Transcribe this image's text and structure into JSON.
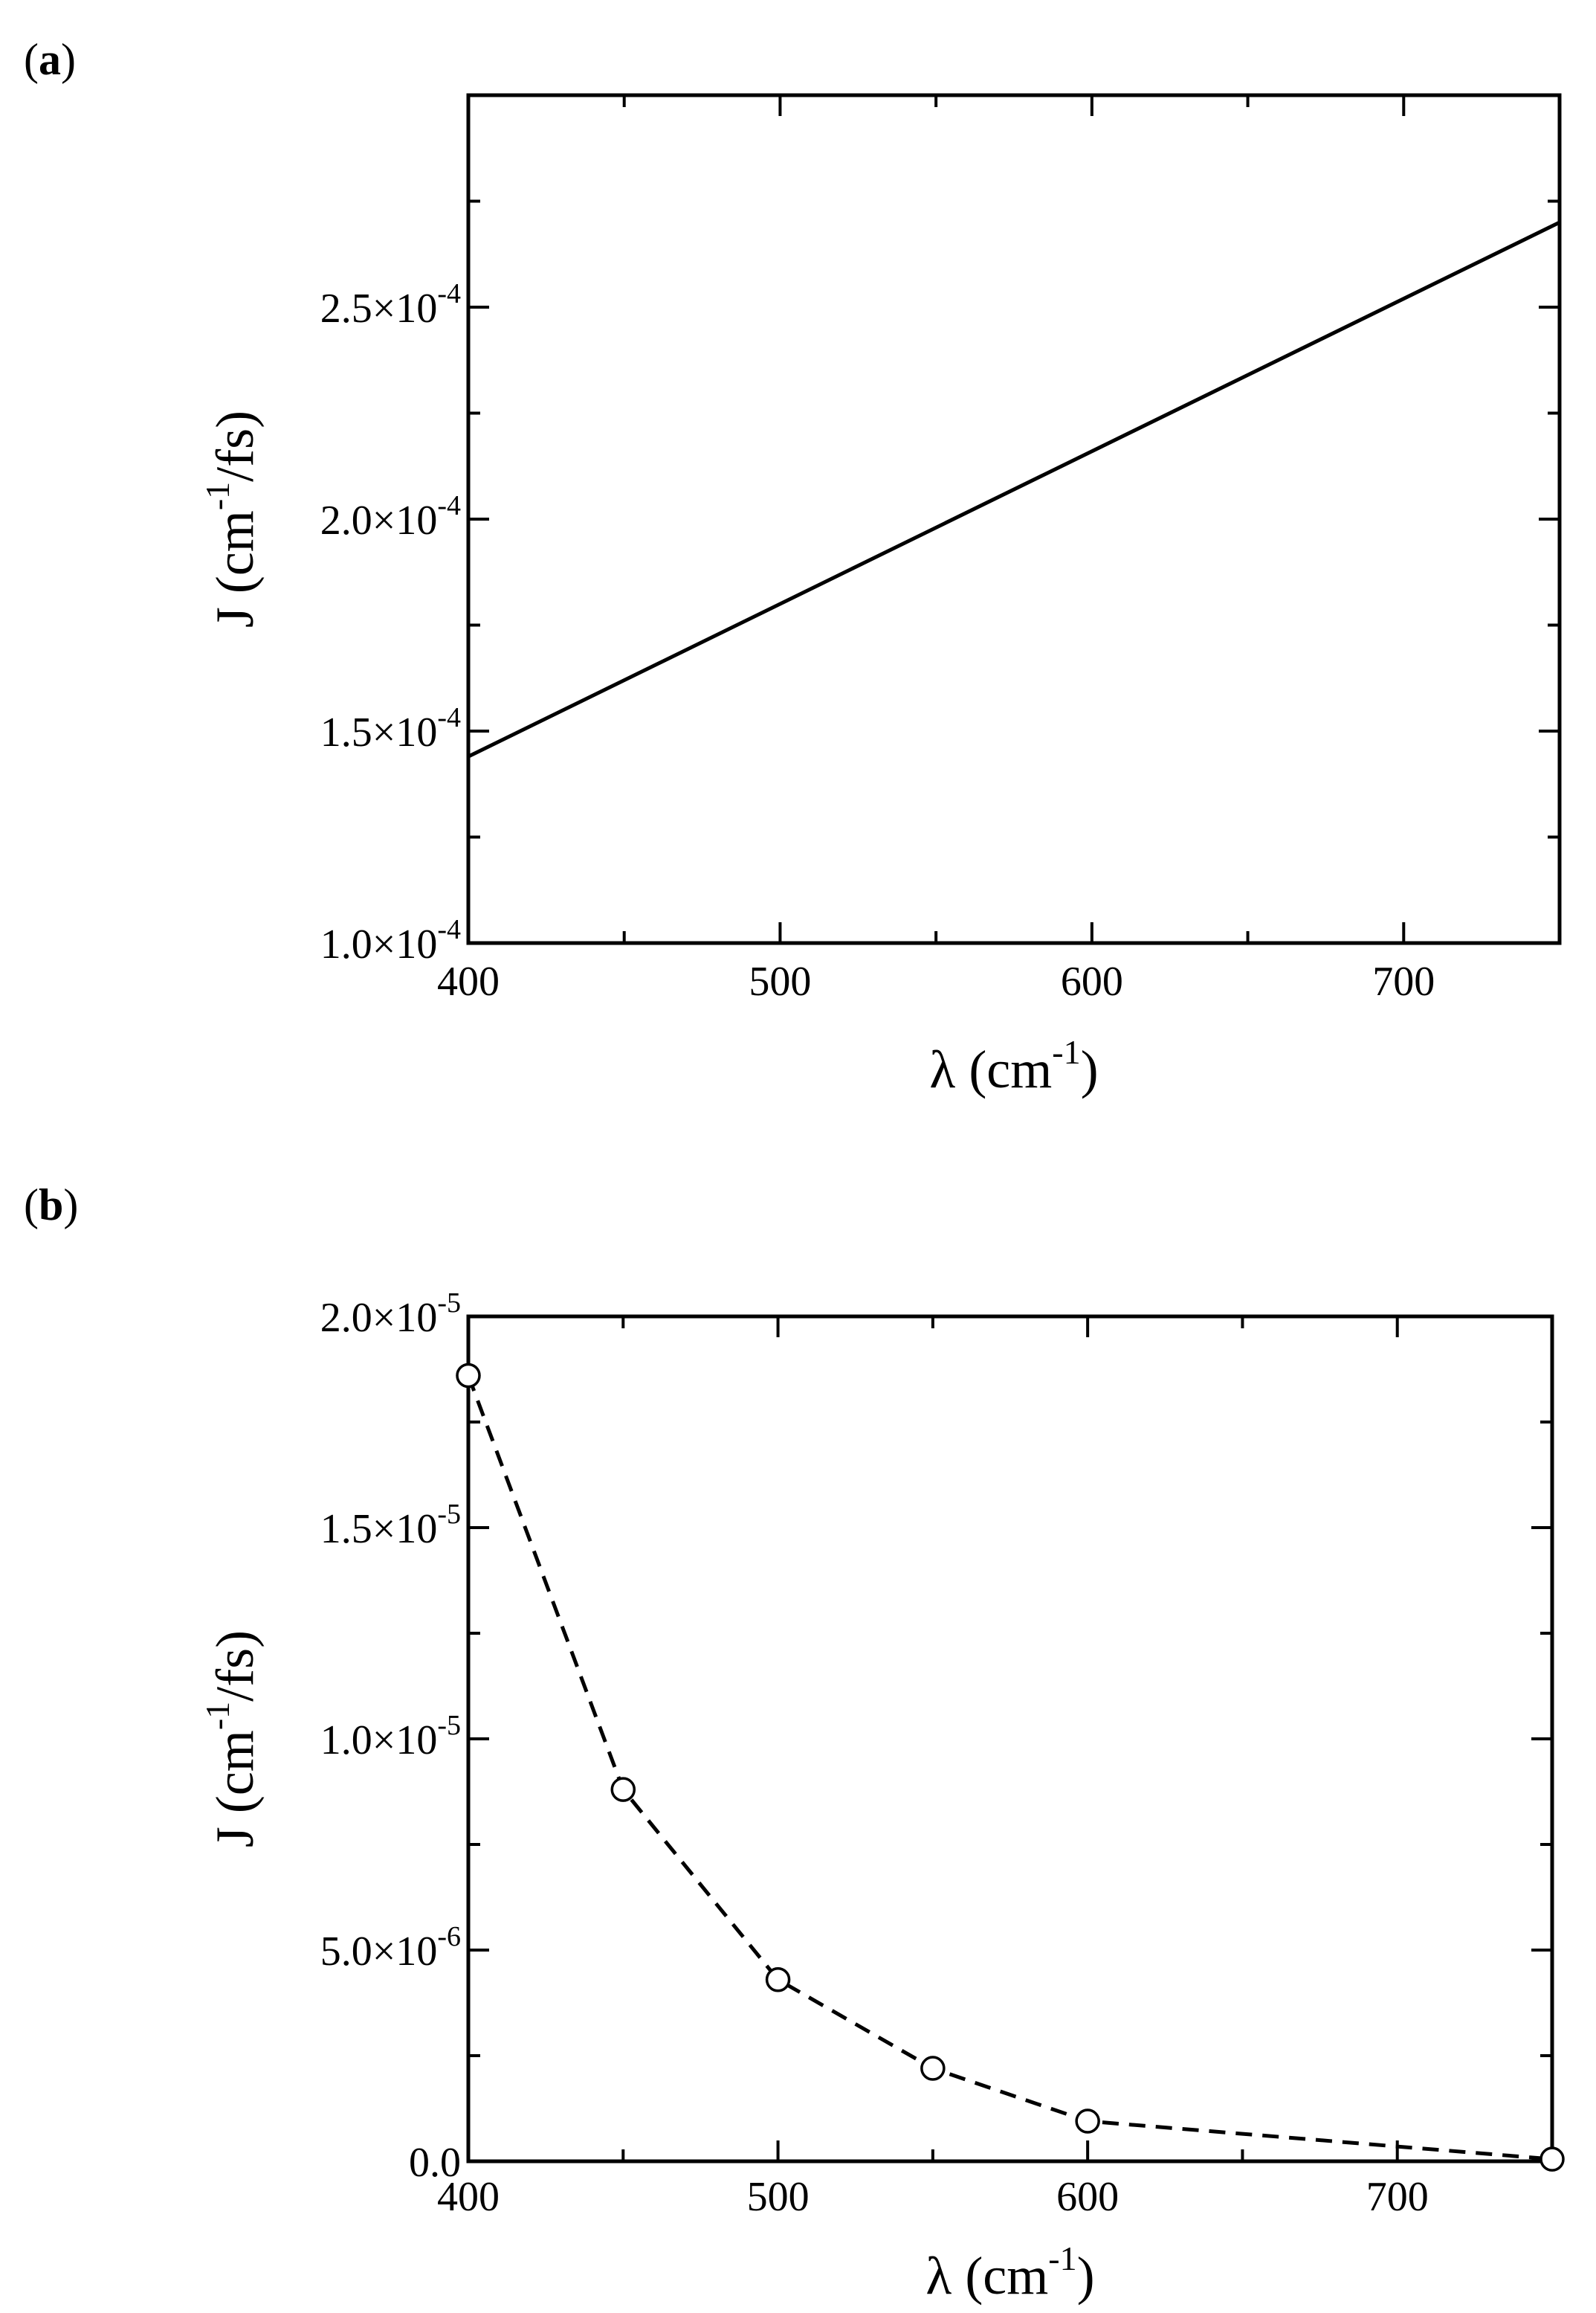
{
  "chart_data": [
    {
      "panel_label": "(a)",
      "type": "line",
      "style": "solid",
      "xlabel": "λ (cm-1)",
      "ylabel": "J (cm-1/fs)",
      "xlim": [
        400,
        750
      ],
      "ylim": [
        0.0001,
        0.0003
      ],
      "x_ticks": [
        {
          "value": 400,
          "label": "400"
        },
        {
          "value": 500,
          "label": "500"
        },
        {
          "value": 600,
          "label": "600"
        },
        {
          "value": 700,
          "label": "700"
        }
      ],
      "y_ticks": [
        {
          "value": 0.0001,
          "mantissa": "1.0×10",
          "exponent": "-4"
        },
        {
          "value": 0.00015,
          "mantissa": "1.5×10",
          "exponent": "-4"
        },
        {
          "value": 0.0002,
          "mantissa": "2.0×10",
          "exponent": "-4"
        },
        {
          "value": 0.00025,
          "mantissa": "2.5×10",
          "exponent": "-4"
        }
      ],
      "series": [
        {
          "x": [
            400,
            750
          ],
          "y": [
            0.000144,
            0.00027
          ]
        }
      ]
    },
    {
      "panel_label": "(b)",
      "type": "line",
      "style": "dashed-circles",
      "xlabel": "λ (cm-1)",
      "ylabel": "J (cm-1/fs)",
      "xlim": [
        400,
        750
      ],
      "ylim": [
        0,
        2e-05
      ],
      "x_ticks": [
        {
          "value": 400,
          "label": "400"
        },
        {
          "value": 500,
          "label": "500"
        },
        {
          "value": 600,
          "label": "600"
        },
        {
          "value": 700,
          "label": "700"
        }
      ],
      "y_ticks": [
        {
          "value": 0,
          "mantissa": "0.0",
          "exponent": ""
        },
        {
          "value": 5e-06,
          "mantissa": "5.0×10",
          "exponent": "-6"
        },
        {
          "value": 1e-05,
          "mantissa": "1.0×10",
          "exponent": "-5"
        },
        {
          "value": 1.5e-05,
          "mantissa": "1.5×10",
          "exponent": "-5"
        },
        {
          "value": 2e-05,
          "mantissa": "2.0×10",
          "exponent": "-5"
        }
      ],
      "series": [
        {
          "x": [
            400,
            450,
            500,
            550,
            600,
            750
          ],
          "y": [
            1.86e-05,
            8.8e-06,
            4.3e-06,
            2.2e-06,
            9.5e-07,
            5e-08
          ]
        }
      ]
    }
  ]
}
